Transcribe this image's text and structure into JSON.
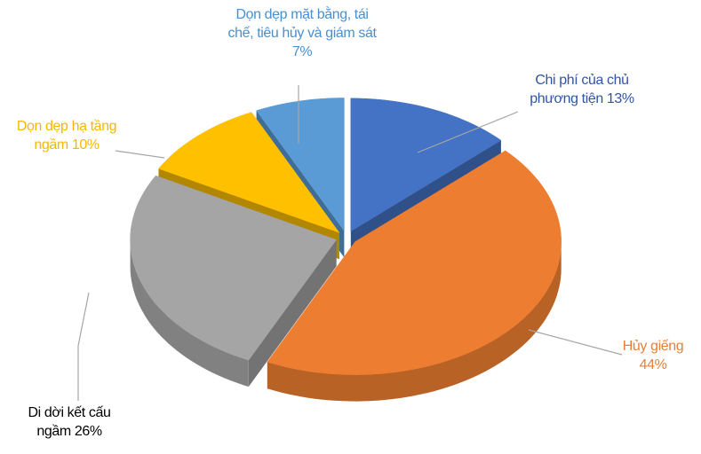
{
  "chart_data": {
    "type": "pie3d",
    "categories": [
      "Chi phí của chủ phương tiện",
      "Hủy giếng",
      "Di dời kết cấu ngầm",
      "Dọn dẹp hạ tầng ngầm",
      "Dọn dẹp mặt bằng, tái chế, tiêu hủy và giám sát"
    ],
    "values": [
      13,
      44,
      26,
      10,
      7
    ],
    "value_labels": [
      "13%",
      "44%",
      "26%",
      "10%",
      "7%"
    ],
    "colors": [
      "#4472c4",
      "#ed7d31",
      "#a5a5a5",
      "#ffc000",
      "#5b9bd5"
    ],
    "label_colors": [
      "#2f55a4",
      "#ed7d31",
      "#000000",
      "#f5b800",
      "#4a8fd0"
    ]
  }
}
